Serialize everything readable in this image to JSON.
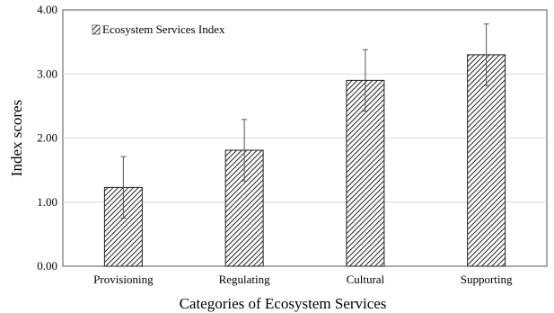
{
  "chart_data": {
    "type": "bar",
    "categories": [
      "Provisioning",
      "Regulating",
      "Cultural",
      "Supporting"
    ],
    "series": [
      {
        "name": "Ecosystem Services Index",
        "values": [
          1.23,
          1.81,
          2.9,
          3.3
        ],
        "error_plus": [
          0.48,
          0.48,
          0.48,
          0.48
        ],
        "error_minus": [
          0.48,
          0.48,
          0.48,
          0.48
        ]
      }
    ],
    "xlabel": "Categories of Ecosystem Services",
    "ylabel": "Index scores",
    "ylim": [
      0,
      4
    ],
    "yticks": [
      0,
      1,
      2,
      3,
      4
    ],
    "ytick_labels": [
      "0.00",
      "1.00",
      "2.00",
      "3.00",
      "4.00"
    ],
    "grid": true,
    "legend_position": "top-left",
    "bar_fill": "diagonal-hatch",
    "colors": {
      "bar_stroke": "#222222",
      "hatch": "#333333",
      "grid": "#d9d9d9",
      "axis": "#000000"
    }
  }
}
